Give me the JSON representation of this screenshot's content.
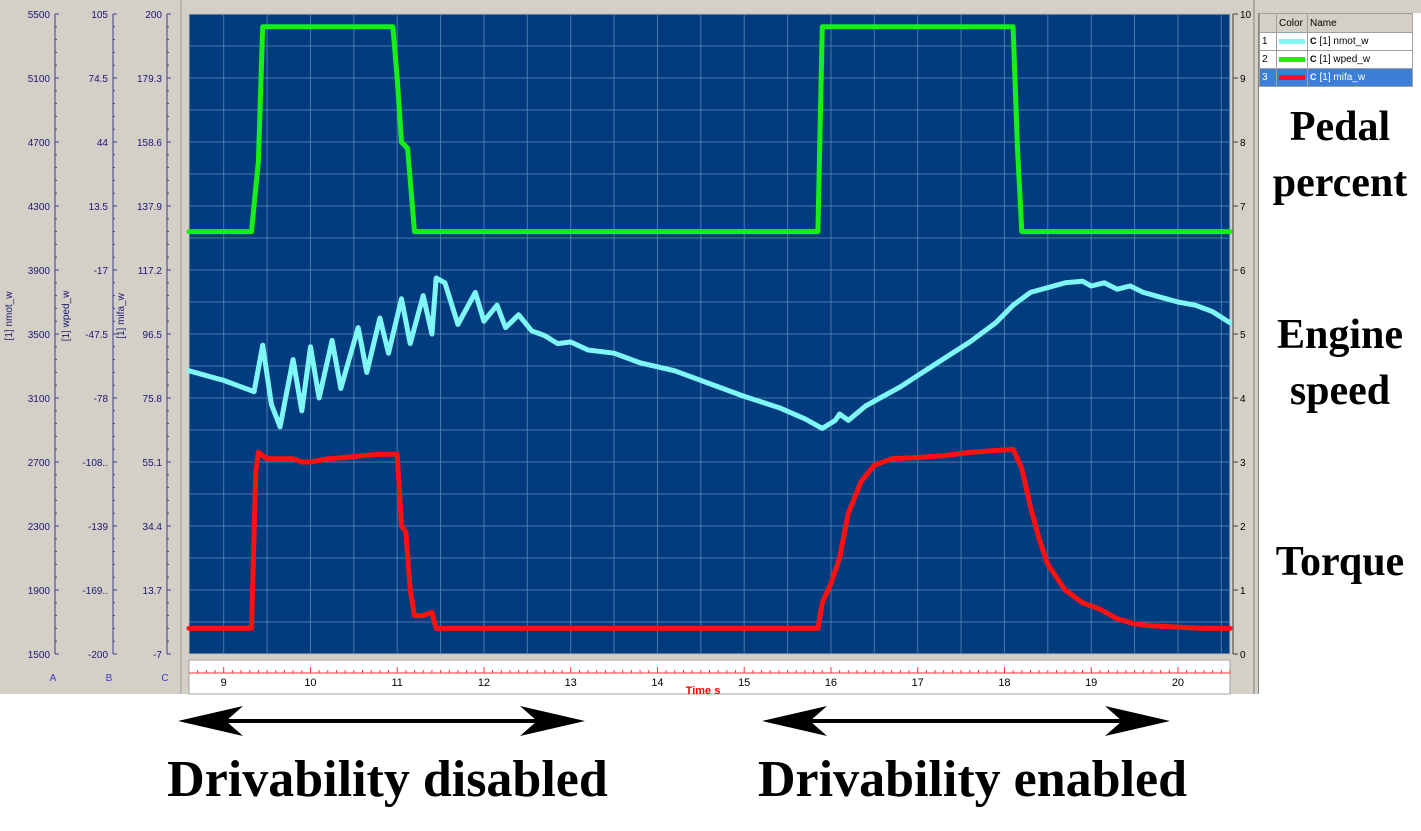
{
  "chart_data": {
    "type": "line",
    "xlabel": "Time",
    "xunit": "s",
    "xlim": [
      8.6,
      20.6
    ],
    "x_ticks": [
      9,
      10,
      11,
      12,
      13,
      14,
      15,
      16,
      17,
      18,
      19,
      20
    ],
    "grid": true,
    "axes": [
      {
        "id": "A",
        "name": "[1] nmot_w",
        "ticks": [
          "5500",
          "5100",
          "4700",
          "4300",
          "3900",
          "3500",
          "3100",
          "2700",
          "2300",
          "1900",
          "1500"
        ]
      },
      {
        "id": "B",
        "name": "[1] wped_w",
        "ticks": [
          "105",
          "74.5",
          "44",
          "13.5",
          "-17",
          "-47.5",
          "-78",
          "-108..",
          "-139",
          "-169..",
          "-200"
        ]
      },
      {
        "id": "C",
        "name": "[1] mifa_w",
        "ticks": [
          "200",
          "179.3",
          "158.6",
          "137.9",
          "117.2",
          "96.5",
          "75.8",
          "55.1",
          "34.4",
          "13.7",
          "-7"
        ]
      }
    ],
    "right_axis_ticks": [
      "10",
      "9",
      "8",
      "7",
      "6",
      "5",
      "4",
      "3",
      "2",
      "1",
      "0"
    ],
    "series": [
      {
        "name": "[1] nmot_w",
        "color": "#7ff7f7",
        "axis_index": 0,
        "points": [
          [
            8.6,
            3270
          ],
          [
            9.0,
            3210
          ],
          [
            9.2,
            3170
          ],
          [
            9.35,
            3140
          ],
          [
            9.45,
            3430
          ],
          [
            9.55,
            3060
          ],
          [
            9.65,
            2920
          ],
          [
            9.72,
            3120
          ],
          [
            9.8,
            3340
          ],
          [
            9.9,
            3020
          ],
          [
            10.0,
            3420
          ],
          [
            10.1,
            3100
          ],
          [
            10.25,
            3460
          ],
          [
            10.35,
            3160
          ],
          [
            10.55,
            3540
          ],
          [
            10.65,
            3260
          ],
          [
            10.8,
            3600
          ],
          [
            10.9,
            3380
          ],
          [
            11.05,
            3720
          ],
          [
            11.15,
            3440
          ],
          [
            11.3,
            3740
          ],
          [
            11.4,
            3500
          ],
          [
            11.45,
            3850
          ],
          [
            11.55,
            3820
          ],
          [
            11.7,
            3560
          ],
          [
            11.9,
            3760
          ],
          [
            12.0,
            3580
          ],
          [
            12.15,
            3680
          ],
          [
            12.25,
            3540
          ],
          [
            12.4,
            3620
          ],
          [
            12.55,
            3520
          ],
          [
            12.7,
            3490
          ],
          [
            12.85,
            3440
          ],
          [
            13.0,
            3450
          ],
          [
            13.2,
            3400
          ],
          [
            13.5,
            3380
          ],
          [
            13.8,
            3320
          ],
          [
            14.2,
            3270
          ],
          [
            14.6,
            3190
          ],
          [
            15.0,
            3110
          ],
          [
            15.4,
            3040
          ],
          [
            15.7,
            2970
          ],
          [
            15.9,
            2910
          ],
          [
            16.05,
            2960
          ],
          [
            16.1,
            3000
          ],
          [
            16.2,
            2960
          ],
          [
            16.4,
            3050
          ],
          [
            16.8,
            3170
          ],
          [
            17.2,
            3310
          ],
          [
            17.6,
            3450
          ],
          [
            17.9,
            3570
          ],
          [
            18.1,
            3680
          ],
          [
            18.3,
            3760
          ],
          [
            18.5,
            3790
          ],
          [
            18.7,
            3820
          ],
          [
            18.9,
            3830
          ],
          [
            19.0,
            3800
          ],
          [
            19.15,
            3820
          ],
          [
            19.3,
            3780
          ],
          [
            19.45,
            3800
          ],
          [
            19.6,
            3760
          ],
          [
            19.8,
            3730
          ],
          [
            20.0,
            3700
          ],
          [
            20.2,
            3680
          ],
          [
            20.4,
            3640
          ],
          [
            20.6,
            3570
          ]
        ]
      },
      {
        "name": "[1] wped_w",
        "color": "#16f016",
        "axis_index": 1,
        "points": [
          [
            8.6,
            6.6
          ],
          [
            9.32,
            6.6
          ],
          [
            9.4,
            7.7
          ],
          [
            9.45,
            9.8
          ],
          [
            10.95,
            9.8
          ],
          [
            11.0,
            9.0
          ],
          [
            11.05,
            8.0
          ],
          [
            11.12,
            7.9
          ],
          [
            11.2,
            6.6
          ],
          [
            15.85,
            6.6
          ],
          [
            15.9,
            9.8
          ],
          [
            18.1,
            9.8
          ],
          [
            18.15,
            7.9
          ],
          [
            18.2,
            6.6
          ],
          [
            20.6,
            6.6
          ]
        ]
      },
      {
        "name": "[1] mifa_w",
        "color": "#ff1010",
        "axis_index": 2,
        "points": [
          [
            8.6,
            0.4
          ],
          [
            9.32,
            0.4
          ],
          [
            9.37,
            2.85
          ],
          [
            9.4,
            3.15
          ],
          [
            9.5,
            3.05
          ],
          [
            9.6,
            3.05
          ],
          [
            9.7,
            3.05
          ],
          [
            9.8,
            3.05
          ],
          [
            9.9,
            3.0
          ],
          [
            10.0,
            3.0
          ],
          [
            10.2,
            3.05
          ],
          [
            10.4,
            3.07
          ],
          [
            10.6,
            3.1
          ],
          [
            10.8,
            3.12
          ],
          [
            11.0,
            3.12
          ],
          [
            11.05,
            2.0
          ],
          [
            11.1,
            1.9
          ],
          [
            11.15,
            1.0
          ],
          [
            11.2,
            0.6
          ],
          [
            11.3,
            0.6
          ],
          [
            11.4,
            0.65
          ],
          [
            11.45,
            0.4
          ],
          [
            15.85,
            0.4
          ],
          [
            15.9,
            0.8
          ],
          [
            16.0,
            1.1
          ],
          [
            16.1,
            1.5
          ],
          [
            16.2,
            2.2
          ],
          [
            16.35,
            2.7
          ],
          [
            16.5,
            2.95
          ],
          [
            16.7,
            3.05
          ],
          [
            17.0,
            3.07
          ],
          [
            17.3,
            3.1
          ],
          [
            17.6,
            3.15
          ],
          [
            17.9,
            3.18
          ],
          [
            18.1,
            3.2
          ],
          [
            18.2,
            2.9
          ],
          [
            18.3,
            2.3
          ],
          [
            18.4,
            1.8
          ],
          [
            18.5,
            1.4
          ],
          [
            18.7,
            1.0
          ],
          [
            18.9,
            0.8
          ],
          [
            19.1,
            0.7
          ],
          [
            19.3,
            0.55
          ],
          [
            19.5,
            0.47
          ],
          [
            19.7,
            0.44
          ],
          [
            20.0,
            0.42
          ],
          [
            20.3,
            0.4
          ],
          [
            20.6,
            0.4
          ]
        ]
      }
    ]
  },
  "legend": {
    "header_color": "Color",
    "header_name": "Name",
    "rows": [
      {
        "index": "1",
        "color": "#7ff7f7",
        "name": "[1]  nmot_w"
      },
      {
        "index": "2",
        "color": "#16f016",
        "name": "[1]  wped_w"
      },
      {
        "index": "3",
        "color": "#ff1010",
        "name": "[1]  mifa_w"
      }
    ],
    "icon_glyph": "C"
  },
  "annotations": {
    "pedal": "Pedal percent",
    "engine": "Engine speed",
    "torque": "Torque",
    "disabled": "Drivability disabled",
    "enabled": "Drivability enabled"
  }
}
